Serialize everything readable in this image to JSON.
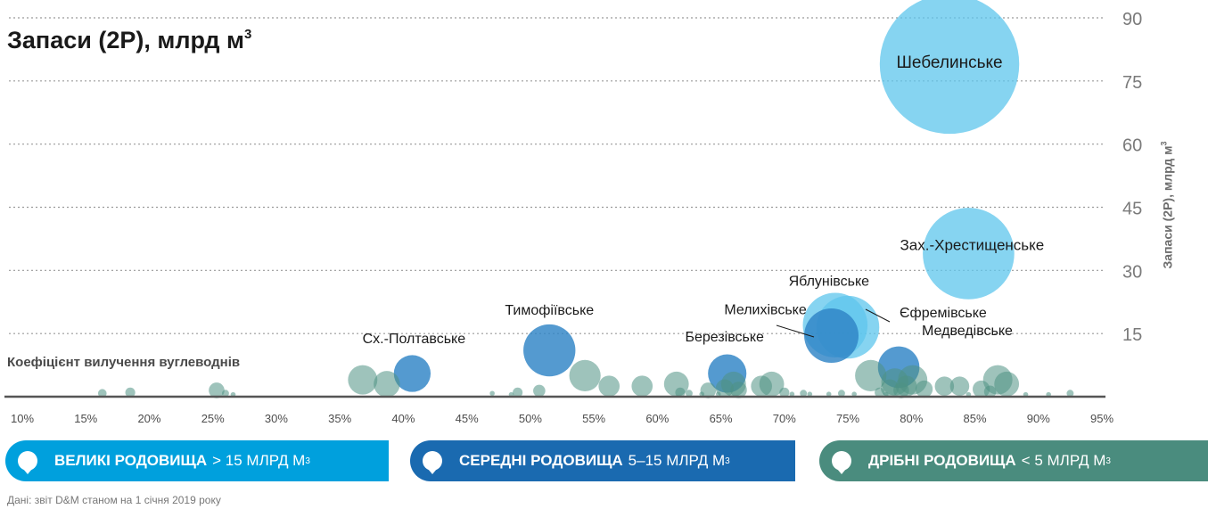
{
  "chart_data": {
    "type": "bubble",
    "title": "Запаси (2P), млрд м",
    "title_sup": "3",
    "ylabel": "Запаси (2P), млрд м",
    "ylabel_sup": "3",
    "xlabel": "Коефіцієнт вилучення вуглеводнів",
    "x_ticks": [
      "10%",
      "15%",
      "20%",
      "25%",
      "30%",
      "35%",
      "40%",
      "45%",
      "50%",
      "55%",
      "60%",
      "65%",
      "70%",
      "75%",
      "80%",
      "85%",
      "90%",
      "95%"
    ],
    "y_ticks": [
      "15",
      "30",
      "45",
      "60",
      "75",
      "90"
    ],
    "xlim": [
      10,
      95
    ],
    "ylim": [
      0,
      90
    ],
    "grid": "horizontal dotted",
    "y_axis_side": "right",
    "colors": {
      "large": "#5ec5ec",
      "medium": "#2e84c6",
      "small": "#4e9283",
      "large_legend": "#00a0dd",
      "medium_legend": "#1a6ab0",
      "small_legend": "#4a8c7e"
    },
    "series": [
      {
        "name": "ВЕЛИКІ РОДОВИЩА",
        "category": "large",
        "points": [
          {
            "x": 83,
            "y": 79,
            "size": 79,
            "label": "Шебелинське"
          },
          {
            "x": 84.5,
            "y": 34,
            "size": 34,
            "label": "Зах.-Хрестищенське"
          },
          {
            "x": 74,
            "y": 17,
            "size": 17,
            "label": "Яблунівське"
          },
          {
            "x": 75,
            "y": 16.5,
            "size": 16,
            "label": "Єфремівське"
          }
        ]
      },
      {
        "name": "СЕРЕДНІ РОДОВИЩА",
        "category": "medium",
        "points": [
          {
            "x": 51.5,
            "y": 11,
            "size": 11,
            "label": "Тимофіївське"
          },
          {
            "x": 40.7,
            "y": 5.5,
            "size": 5.5,
            "label": "Сх.-Полтавське"
          },
          {
            "x": 65.5,
            "y": 5.5,
            "size": 6,
            "label": "Березівське"
          },
          {
            "x": 73.7,
            "y": 14.5,
            "size": 12,
            "label": "Мелихівське"
          },
          {
            "x": 79,
            "y": 7,
            "size": 7,
            "label": "Медведівське"
          }
        ]
      },
      {
        "name": "ДРІБНІ РОДОВИЩА",
        "category": "small",
        "points": [
          {
            "x": 16.3,
            "y": 0.8,
            "size": 0.3
          },
          {
            "x": 18.5,
            "y": 1.0,
            "size": 0.4
          },
          {
            "x": 25.3,
            "y": 1.5,
            "size": 1.0
          },
          {
            "x": 26.0,
            "y": 0.8,
            "size": 0.2
          },
          {
            "x": 26.6,
            "y": 0.5,
            "size": 0.1
          },
          {
            "x": 36.8,
            "y": 4.0,
            "size": 3.5
          },
          {
            "x": 38.7,
            "y": 3.0,
            "size": 2.8
          },
          {
            "x": 47.0,
            "y": 0.8,
            "size": 0.1
          },
          {
            "x": 48.5,
            "y": 0.5,
            "size": 0.1
          },
          {
            "x": 49.0,
            "y": 1.0,
            "size": 0.4
          },
          {
            "x": 50.7,
            "y": 1.4,
            "size": 0.6
          },
          {
            "x": 54.3,
            "y": 5.0,
            "size": 4.0
          },
          {
            "x": 56.2,
            "y": 2.5,
            "size": 1.8
          },
          {
            "x": 58.8,
            "y": 2.5,
            "size": 1.8
          },
          {
            "x": 61.5,
            "y": 3.0,
            "size": 2.5
          },
          {
            "x": 61.8,
            "y": 1.0,
            "size": 0.4
          },
          {
            "x": 62.5,
            "y": 0.8,
            "size": 0.2
          },
          {
            "x": 63.5,
            "y": 0.6,
            "size": 0.1
          },
          {
            "x": 64.0,
            "y": 1.5,
            "size": 1.0
          },
          {
            "x": 64.8,
            "y": 0.6,
            "size": 0.1
          },
          {
            "x": 65.3,
            "y": 2.0,
            "size": 1.3
          },
          {
            "x": 66.0,
            "y": 3.0,
            "size": 2.5
          },
          {
            "x": 66.4,
            "y": 1.6,
            "size": 1.1
          },
          {
            "x": 68.2,
            "y": 2.5,
            "size": 1.8
          },
          {
            "x": 69.0,
            "y": 3.0,
            "size": 2.5
          },
          {
            "x": 70.0,
            "y": 1.0,
            "size": 0.4
          },
          {
            "x": 70.6,
            "y": 0.6,
            "size": 0.1
          },
          {
            "x": 71.5,
            "y": 0.8,
            "size": 0.2
          },
          {
            "x": 72.0,
            "y": 0.6,
            "size": 0.1
          },
          {
            "x": 73.5,
            "y": 0.6,
            "size": 0.1
          },
          {
            "x": 74.5,
            "y": 0.8,
            "size": 0.2
          },
          {
            "x": 75.5,
            "y": 0.6,
            "size": 0.1
          },
          {
            "x": 76.8,
            "y": 5.0,
            "size": 4.0
          },
          {
            "x": 77.5,
            "y": 1.0,
            "size": 0.4
          },
          {
            "x": 78.0,
            "y": 0.5,
            "size": 0.1
          },
          {
            "x": 78.3,
            "y": 2.0,
            "size": 1.3
          },
          {
            "x": 78.7,
            "y": 3.5,
            "size": 3.0
          },
          {
            "x": 79.2,
            "y": 1.5,
            "size": 1.0
          },
          {
            "x": 79.6,
            "y": 2.5,
            "size": 1.8
          },
          {
            "x": 80.1,
            "y": 4.0,
            "size": 3.5
          },
          {
            "x": 81.0,
            "y": 1.8,
            "size": 1.2
          },
          {
            "x": 82.6,
            "y": 2.5,
            "size": 1.5
          },
          {
            "x": 83.8,
            "y": 2.5,
            "size": 1.5
          },
          {
            "x": 84.5,
            "y": 0.5,
            "size": 0.1
          },
          {
            "x": 85.5,
            "y": 1.8,
            "size": 1.2
          },
          {
            "x": 86.2,
            "y": 1.2,
            "size": 0.6
          },
          {
            "x": 86.8,
            "y": 4.0,
            "size": 3.5
          },
          {
            "x": 87.5,
            "y": 3.0,
            "size": 2.5
          },
          {
            "x": 89.0,
            "y": 0.5,
            "size": 0.1
          },
          {
            "x": 90.8,
            "y": 0.5,
            "size": 0.1
          },
          {
            "x": 92.5,
            "y": 0.8,
            "size": 0.2
          }
        ]
      }
    ],
    "legend": [
      {
        "bold": "ВЕЛИКІ РОДОВИЩА",
        "rest": "> 15 МЛРД М",
        "sup": "3",
        "color_key": "large_legend"
      },
      {
        "bold": "СЕРЕДНІ РОДОВИЩА",
        "rest": "5–15 МЛРД М",
        "sup": "3",
        "color_key": "medium_legend"
      },
      {
        "bold": "ДРІБНІ РОДОВИЩА",
        "rest": "< 5 МЛРД М",
        "sup": "3",
        "color_key": "small_legend"
      }
    ],
    "source": "Дані: звіт D&M станом на 1 січня 2019 року"
  }
}
